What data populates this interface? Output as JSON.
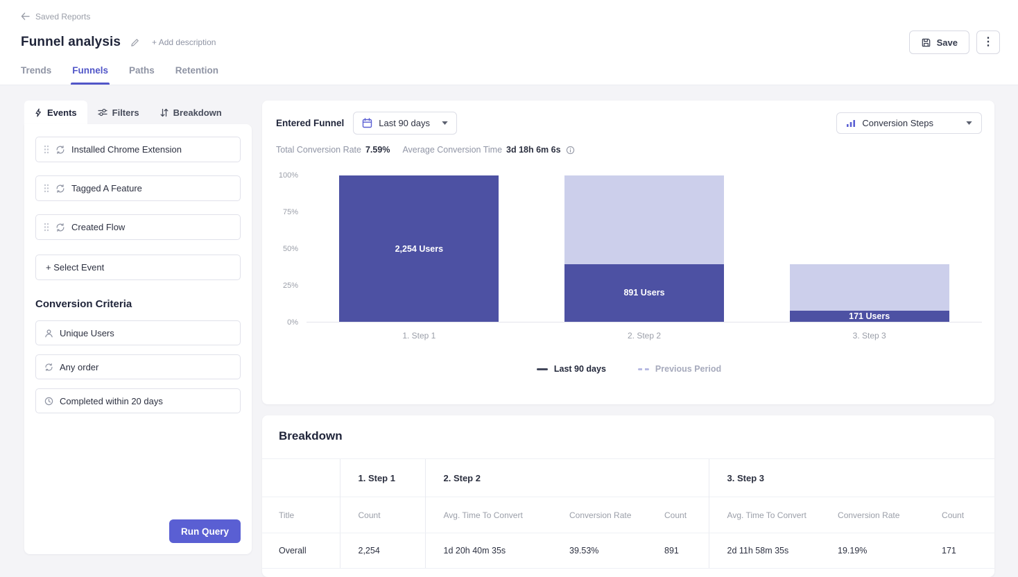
{
  "header": {
    "back_label": "Saved Reports",
    "title": "Funnel analysis",
    "add_description_label": "+ Add description",
    "save_label": "Save",
    "tabs": [
      {
        "label": "Trends",
        "active": false
      },
      {
        "label": "Funnels",
        "active": true
      },
      {
        "label": "Paths",
        "active": false
      },
      {
        "label": "Retention",
        "active": false
      }
    ]
  },
  "query_panel": {
    "tabs": [
      {
        "label": "Events",
        "icon": "lightning-icon",
        "active": true
      },
      {
        "label": "Filters",
        "icon": "sliders-icon",
        "active": false
      },
      {
        "label": "Breakdown",
        "icon": "split-arrows-icon",
        "active": false
      }
    ],
    "events": [
      "Installed Chrome Extension",
      "Tagged A Feature",
      "Created Flow"
    ],
    "select_event_label": "+ Select Event",
    "conversion_criteria": {
      "heading": "Conversion Criteria",
      "items": [
        {
          "label": "Unique Users",
          "icon": "user-icon"
        },
        {
          "label": "Any order",
          "icon": "loop-icon"
        },
        {
          "label": "Completed within 20 days",
          "icon": "clock-icon"
        }
      ]
    },
    "run_query_label": "Run Query"
  },
  "chart_card": {
    "entered_funnel_label": "Entered Funnel",
    "date_range": "Last 90 days",
    "view_mode": "Conversion Steps",
    "stats": {
      "total_conversion_rate_label": "Total Conversion Rate",
      "total_conversion_rate": "7.59%",
      "avg_conversion_time_label": "Average Conversion Time",
      "avg_conversion_time": "3d 18h 6m 6s"
    },
    "legend": [
      {
        "label": "Last 90 days",
        "style": "solid"
      },
      {
        "label": "Previous Period",
        "style": "dashed"
      }
    ]
  },
  "chart_data": {
    "type": "bar",
    "subtype": "funnel-conversion-steps",
    "title": "Entered Funnel",
    "categories": [
      "1. Step 1",
      "2. Step 2",
      "3. Step 3"
    ],
    "series": [
      {
        "name": "Last 90 days",
        "values_users": [
          2254,
          891,
          171
        ],
        "values_pct": [
          100,
          39.53,
          7.59
        ],
        "bar_labels": [
          "2,254 Users",
          "891 Users",
          "171 Users"
        ]
      }
    ],
    "step_base_pct": [
      100,
      100,
      39.53
    ],
    "yticks": [
      100,
      75,
      50,
      25,
      0
    ],
    "ytick_labels": [
      "100%",
      "75%",
      "50%",
      "25%",
      "0%"
    ],
    "ylim": [
      0,
      100
    ],
    "grid": false,
    "legend_position": "bottom",
    "colors": {
      "bar": "#4d51a3",
      "bar_base": "#cccfeb"
    }
  },
  "breakdown": {
    "title": "Breakdown",
    "groups": [
      "1. Step 1",
      "2. Step 2",
      "3. Step 3"
    ],
    "col_headers": [
      "Title",
      "Count",
      "Avg. Time To Convert",
      "Conversion Rate",
      "Count",
      "Avg. Time To Convert",
      "Conversion Rate",
      "Count"
    ],
    "rows": [
      [
        "Overall",
        "2,254",
        "1d 20h 40m 35s",
        "39.53%",
        "891",
        "2d 11h 58m 35s",
        "19.19%",
        "171"
      ]
    ]
  },
  "colors": {
    "accent": "#5156c8",
    "run_button": "#5a5fd3",
    "bar": "#4d51a3",
    "bar_base": "#cccfeb",
    "background": "#f4f4f7"
  },
  "icons": {
    "back": "back-arrow-icon",
    "edit_title": "pencil-icon",
    "save": "save-icon",
    "more_options": "kebab-menu-icon",
    "events_tab": "lightning-icon",
    "filters_tab": "sliders-icon",
    "breakdown_tab": "split-arrows-icon",
    "drag": "drag-handle-icon",
    "event_row": "loop-icon",
    "unique_users": "user-icon",
    "any_order": "loop-icon",
    "completed_within": "clock-icon",
    "date_range": "calendar-icon",
    "view_mode": "bar-chart-icon",
    "info": "info-icon",
    "caret": "caret-down-icon"
  }
}
